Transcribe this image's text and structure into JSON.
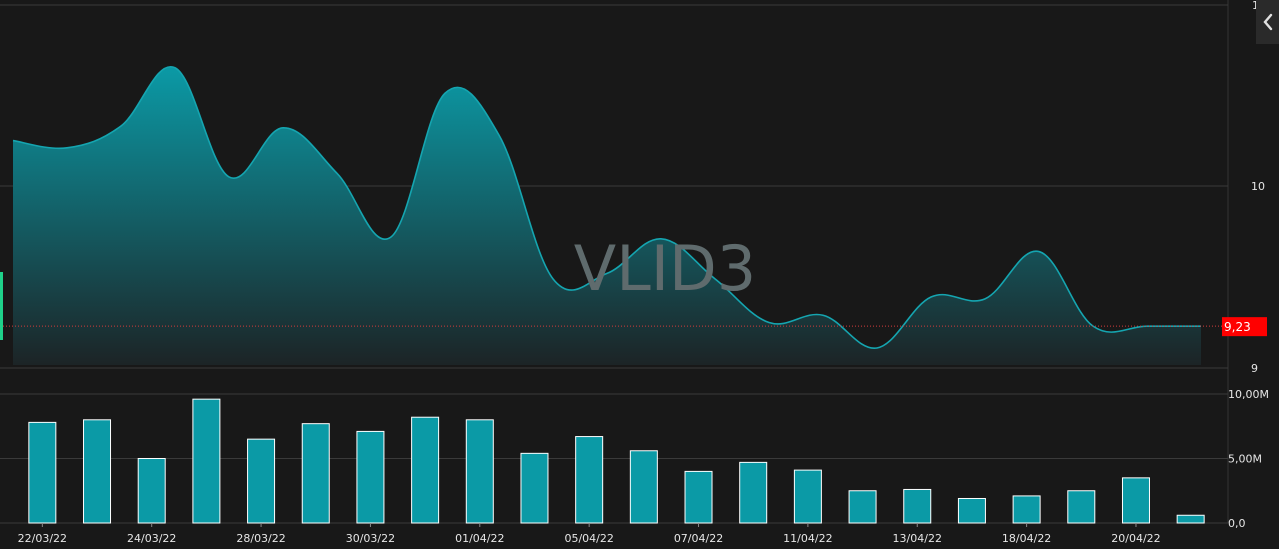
{
  "chart_data": [
    {
      "type": "area",
      "watermark": "VLID3",
      "ylim": [
        9.0,
        10.995
      ],
      "y_ticks": [
        {
          "value": 10,
          "label": "10"
        },
        {
          "value": 9,
          "label": "9"
        }
      ],
      "partial_top_tick": "1",
      "last_price": 9.23,
      "last_price_label": "9,23",
      "series": [
        {
          "x": [
            "21/03/22",
            "22/03/22",
            "23/03/22",
            "24/03/22",
            "25/03/22",
            "28/03/22",
            "29/03/22",
            "30/03/22",
            "31/03/22",
            "01/04/22",
            "04/04/22",
            "05/04/22",
            "06/04/22",
            "07/04/22",
            "08/04/22",
            "11/04/22",
            "12/04/22",
            "13/04/22",
            "14/04/22",
            "18/04/22",
            "19/04/22",
            "20/04/22",
            "22/04/22"
          ],
          "values": [
            10.25,
            10.21,
            10.33,
            10.65,
            10.05,
            10.32,
            10.07,
            9.72,
            10.51,
            10.28,
            9.49,
            9.52,
            9.71,
            9.49,
            9.25,
            9.29,
            9.11,
            9.39,
            9.38,
            9.64,
            9.23,
            9.23,
            9.23
          ]
        }
      ],
      "colors": {
        "line": "#15a5b0",
        "fill_top": "#0b9aa6",
        "fill_bottom": "#1c2426",
        "last_price_badge": "#ff0000",
        "last_price_line": "#d23b3b"
      }
    },
    {
      "type": "bar",
      "ylim": [
        0,
        10.0
      ],
      "y_ticks": [
        {
          "value": 10,
          "label": "10,00M"
        },
        {
          "value": 5,
          "label": "5,00M"
        },
        {
          "value": 0,
          "label": "0,0"
        }
      ],
      "categories": [
        "22/03/22",
        "23/03/22",
        "24/03/22",
        "25/03/22",
        "28/03/22",
        "29/03/22",
        "30/03/22",
        "31/03/22",
        "01/04/22",
        "04/04/22",
        "05/04/22",
        "06/04/22",
        "07/04/22",
        "08/04/22",
        "11/04/22",
        "12/04/22",
        "13/04/22",
        "14/04/22",
        "18/04/22",
        "19/04/22",
        "20/04/22",
        "22/04/22"
      ],
      "values": [
        7.8,
        8.0,
        5.0,
        9.6,
        6.5,
        7.7,
        7.1,
        8.2,
        8.0,
        5.4,
        6.7,
        5.6,
        4.0,
        4.7,
        4.1,
        2.5,
        2.6,
        1.9,
        2.1,
        2.5,
        3.5,
        0.6
      ],
      "x_tick_labels": [
        "22/03/22",
        "24/03/22",
        "28/03/22",
        "30/03/22",
        "01/04/22",
        "05/04/22",
        "07/04/22",
        "11/04/22",
        "13/04/22",
        "18/04/22",
        "20/04/22"
      ],
      "colors": {
        "bar": "#0b9aa6",
        "bar_border": "#ffffff"
      }
    }
  ],
  "icons": {
    "collapse": "chevron-left-icon"
  }
}
